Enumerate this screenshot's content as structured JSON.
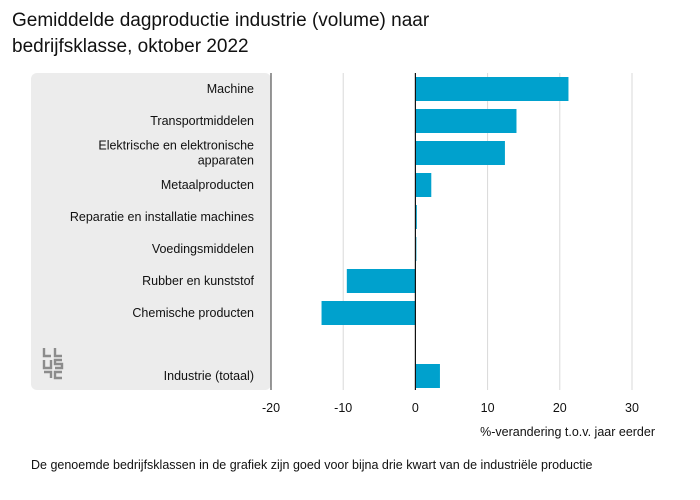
{
  "title": "Gemiddelde dagproductie industrie (volume) naar\nbedrijfsklasse, oktober 2022",
  "footnote": "De genoemde bedrijfsklassen in de grafiek zijn goed voor bijna drie kwart van de industriële productie",
  "logo_icon": "cbs-logo-icon",
  "colors": {
    "bar": "#00a1cd",
    "grid": "#d9d9d9",
    "zero_line": "#111111",
    "panel": "#ececec"
  },
  "chart_data": {
    "type": "bar",
    "orientation": "horizontal",
    "title": "Gemiddelde dagproductie industrie (volume) naar bedrijfsklasse, oktober 2022",
    "xlabel": "%-verandering t.o.v. jaar eerder",
    "ylabel": "",
    "xlim": [
      -20,
      30
    ],
    "xticks": [
      -20,
      -10,
      0,
      10,
      20,
      30
    ],
    "grid": "vertical",
    "categories": [
      "Machine",
      "Transportmiddelen",
      "Elektrische en elektronische apparaten",
      "Metaalproducten",
      "Reparatie en installatie machines",
      "Voedingsmiddelen",
      "Rubber en kunststof",
      "Chemische producten",
      "Industrie (totaal)"
    ],
    "values": [
      21.2,
      14,
      12.4,
      2.2,
      0.2,
      0,
      -9.5,
      -13,
      3.4
    ]
  }
}
